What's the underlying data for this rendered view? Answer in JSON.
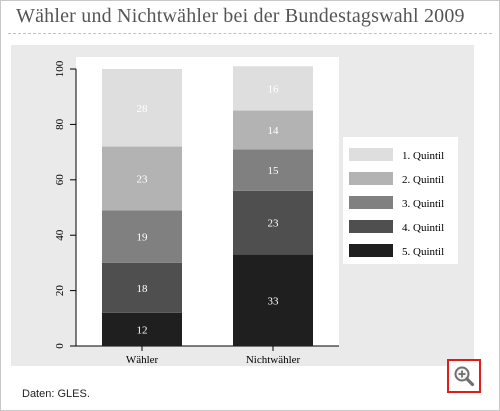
{
  "page": {
    "title": "Wähler und Nichtwähler bei der Bundestagswahl 2009",
    "source": "Daten: GLES."
  },
  "zoom_icon": "zoom-in-icon",
  "colors": {
    "plot_background": "#eaeaea",
    "highlight_border": "#e21b1b"
  },
  "chart_data": {
    "type": "bar",
    "stacked": true,
    "title": "",
    "xlabel": "",
    "ylabel": "",
    "ylim": [
      0,
      100
    ],
    "yticks": [
      0,
      20,
      40,
      60,
      80,
      100
    ],
    "grid": false,
    "legend": "right",
    "categories": [
      "Wähler",
      "Nichtwähler"
    ],
    "series": [
      {
        "name": "5. Quintil",
        "values": [
          12,
          33
        ],
        "color": "#1f1f1f",
        "label_color": "#ffffff"
      },
      {
        "name": "4. Quintil",
        "values": [
          18,
          23
        ],
        "color": "#4f4f4f",
        "label_color": "#ffffff"
      },
      {
        "name": "3. Quintil",
        "values": [
          19,
          15
        ],
        "color": "#808080",
        "label_color": "#ffffff"
      },
      {
        "name": "2. Quintil",
        "values": [
          23,
          14
        ],
        "color": "#b3b3b3",
        "label_color": "#ffffff"
      },
      {
        "name": "1. Quintil",
        "values": [
          28,
          16
        ],
        "color": "#dedede",
        "label_color": "#ffffff"
      }
    ]
  }
}
